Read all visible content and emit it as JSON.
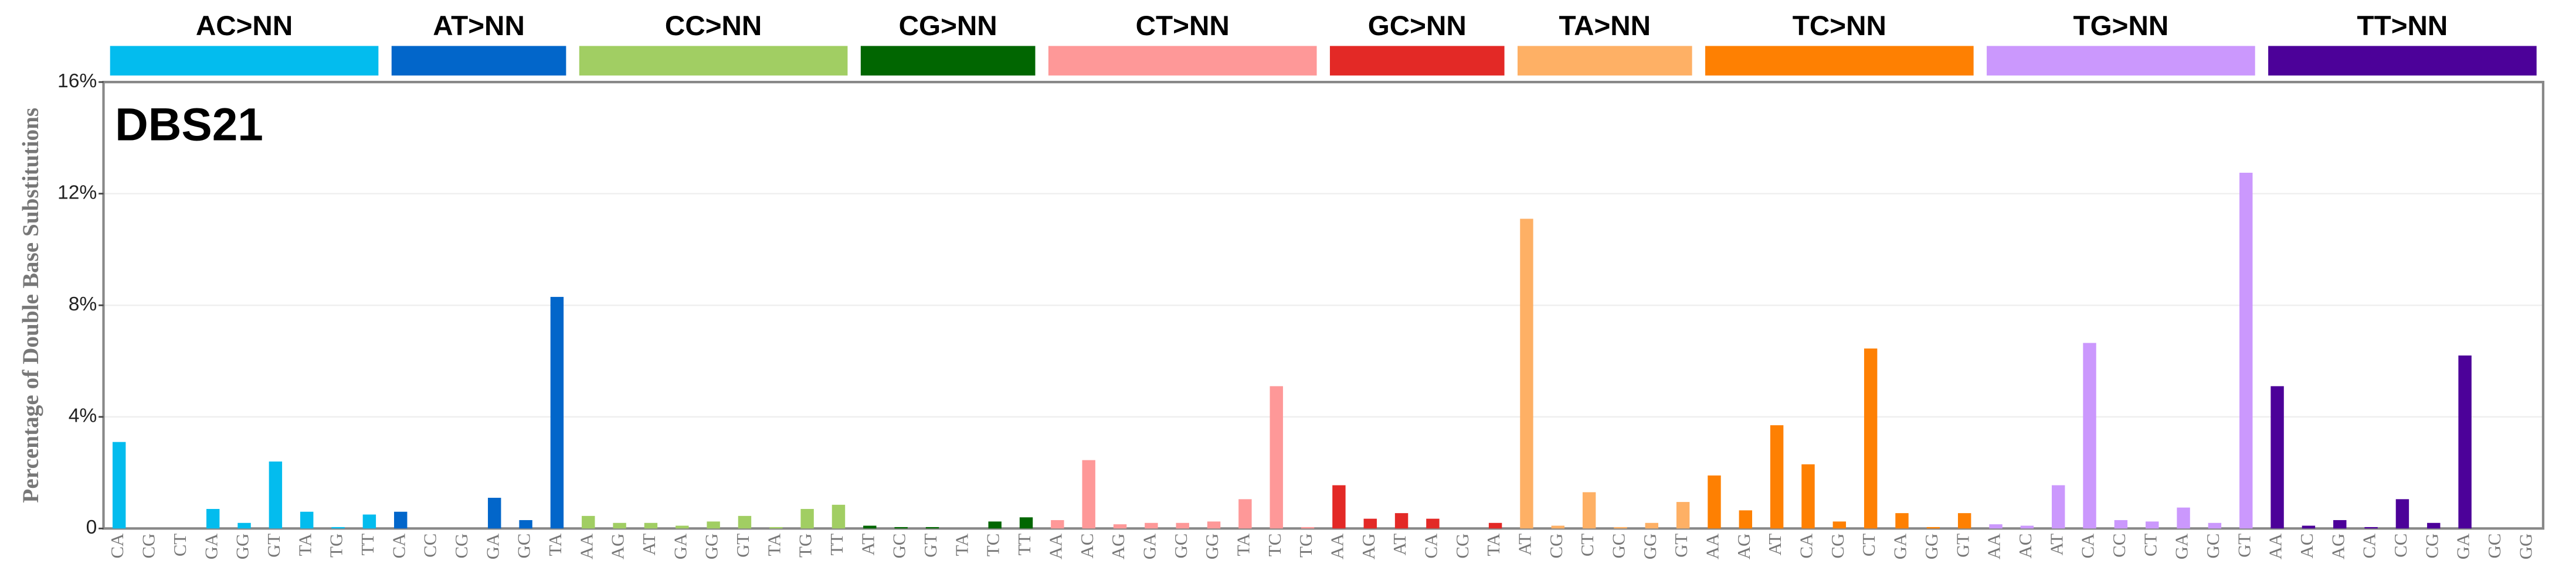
{
  "chart_data": {
    "type": "bar",
    "label": "DBS21",
    "ylabel": "Percentage of Double Base Substitutions",
    "ylim": [
      0,
      16
    ],
    "yticks": [
      0,
      {
        "value": 4,
        "label": "4%"
      },
      {
        "value": 8,
        "label": "8%"
      },
      {
        "value": 12,
        "label": "12%"
      },
      {
        "value": 16,
        "label": "16%"
      }
    ],
    "grid": true,
    "groups": [
      {
        "name": "AC>NN",
        "color": "#03bcee",
        "categories": [
          "CA",
          "CG",
          "CT",
          "GA",
          "GG",
          "GT",
          "TA",
          "TG",
          "TT"
        ],
        "values": [
          3.1,
          0,
          0,
          0.7,
          0.2,
          2.4,
          0.6,
          0.05,
          0.5
        ]
      },
      {
        "name": "AT>NN",
        "color": "#0266ca",
        "categories": [
          "CA",
          "CC",
          "CG",
          "GA",
          "GC",
          "TA"
        ],
        "values": [
          0.6,
          0,
          0,
          1.1,
          0.3,
          8.3
        ]
      },
      {
        "name": "CC>NN",
        "color": "#a1ce63",
        "categories": [
          "AA",
          "AG",
          "AT",
          "GA",
          "GG",
          "GT",
          "TA",
          "TG",
          "TT"
        ],
        "values": [
          0.45,
          0.2,
          0.2,
          0.1,
          0.25,
          0.45,
          0.05,
          0.7,
          0.85
        ]
      },
      {
        "name": "CG>NN",
        "color": "#016601",
        "categories": [
          "AT",
          "GC",
          "GT",
          "TA",
          "TC",
          "TT"
        ],
        "values": [
          0.1,
          0.05,
          0.05,
          0,
          0.25,
          0.4
        ]
      },
      {
        "name": "CT>NN",
        "color": "#fe9898",
        "categories": [
          "AA",
          "AC",
          "AG",
          "GA",
          "GC",
          "GG",
          "TA",
          "TC",
          "TG"
        ],
        "values": [
          0.3,
          2.45,
          0.15,
          0.2,
          0.2,
          0.25,
          1.05,
          5.1,
          0.05
        ]
      },
      {
        "name": "GC>NN",
        "color": "#e32926",
        "categories": [
          "AA",
          "AG",
          "AT",
          "CA",
          "CG",
          "TA"
        ],
        "values": [
          1.55,
          0.35,
          0.55,
          0.35,
          0,
          0.2
        ]
      },
      {
        "name": "TA>NN",
        "color": "#feb065",
        "categories": [
          "AT",
          "CG",
          "CT",
          "GC",
          "GG",
          "GT"
        ],
        "values": [
          11.1,
          0.1,
          1.3,
          0.05,
          0.2,
          0.95
        ]
      },
      {
        "name": "TC>NN",
        "color": "#fe8002",
        "categories": [
          "AA",
          "AG",
          "AT",
          "CA",
          "CG",
          "CT",
          "GA",
          "GG",
          "GT"
        ],
        "values": [
          1.9,
          0.65,
          3.7,
          2.3,
          0.25,
          6.45,
          0.55,
          0.05,
          0.55
        ]
      },
      {
        "name": "TG>NN",
        "color": "#cb98fd",
        "categories": [
          "AA",
          "AC",
          "AT",
          "CA",
          "CC",
          "CT",
          "GA",
          "GC",
          "GT"
        ],
        "values": [
          0.15,
          0.1,
          1.55,
          6.65,
          0.3,
          0.25,
          0.75,
          0.2,
          12.75
        ]
      },
      {
        "name": "TT>NN",
        "color": "#4c0199",
        "categories": [
          "AA",
          "AC",
          "AG",
          "CA",
          "CC",
          "CG",
          "GA",
          "GC",
          "GG"
        ],
        "values": [
          5.1,
          0.1,
          0.3,
          0.05,
          1.05,
          0.2,
          6.2,
          0,
          0
        ]
      }
    ]
  }
}
